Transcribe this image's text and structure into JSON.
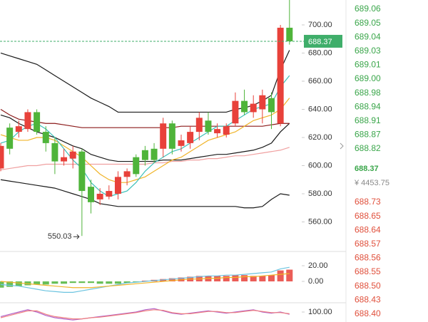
{
  "chart_data": [
    {
      "type": "candlestick",
      "ylim": [
        539,
        717.7
      ],
      "yticks": [
        {
          "value": 700,
          "label": "700.00"
        },
        {
          "value": 680,
          "label": "680.00"
        },
        {
          "value": 660,
          "label": "660.00"
        },
        {
          "value": 640,
          "label": "640.00"
        },
        {
          "value": 620,
          "label": "620.00"
        },
        {
          "value": 600,
          "label": "600.00"
        },
        {
          "value": 580,
          "label": "580.00"
        },
        {
          "value": 560,
          "label": "560.00"
        }
      ],
      "up_color": "#e8413a",
      "down_color": "#4fb43a",
      "last_price": 688.37,
      "last_color": "#3fae6a",
      "open": [
        598,
        627,
        624,
        626,
        638,
        624,
        616,
        603,
        605,
        610,
        585,
        576,
        578,
        580,
        592,
        606,
        611,
        612,
        612,
        630,
        614,
        616,
        624,
        632,
        623,
        622,
        630,
        646,
        638,
        640,
        648,
        630,
        698
      ],
      "high": [
        616,
        630,
        632,
        640,
        640,
        628,
        620,
        612,
        614,
        612,
        590,
        584,
        586,
        596,
        598,
        608,
        614,
        616,
        634,
        632,
        622,
        628,
        638,
        638,
        630,
        630,
        652,
        654,
        650,
        654,
        652,
        700,
        720
      ],
      "low": [
        596,
        608,
        620,
        624,
        622,
        610,
        594,
        600,
        598,
        550.03,
        566,
        572,
        576,
        576,
        586,
        592,
        600,
        602,
        606,
        608,
        610,
        612,
        618,
        622,
        620,
        620,
        628,
        636,
        634,
        630,
        626,
        628,
        686
      ],
      "close": [
        614,
        612,
        628,
        638,
        624,
        616,
        603,
        606,
        610,
        582,
        574,
        580,
        582,
        592,
        596,
        594,
        604,
        604,
        630,
        612,
        618,
        624,
        634,
        624,
        626,
        628,
        646,
        638,
        644,
        650,
        638,
        698,
        688.37
      ],
      "low_label_index": 9,
      "lines": [
        {
          "color": "#1a1a1a",
          "values": [
            680,
            678,
            676,
            674,
            672,
            668,
            664,
            660,
            656,
            652,
            648,
            645,
            642,
            638,
            638,
            638,
            638,
            638,
            638,
            638,
            638,
            638,
            638,
            638,
            638,
            638,
            640,
            641,
            643,
            646,
            650,
            668,
            682
          ]
        },
        {
          "color": "#1a1a1a",
          "values": [
            590,
            589,
            588,
            587,
            586,
            585,
            584,
            582,
            580,
            578,
            576,
            573,
            572,
            571,
            571,
            571,
            571,
            571,
            571,
            571,
            571,
            571,
            571,
            571,
            571,
            571,
            571,
            570,
            570,
            571,
            576,
            580,
            579
          ]
        },
        {
          "color": "#1a1a1a",
          "values": [
            636,
            634,
            630,
            627,
            624,
            622,
            620,
            617,
            614,
            612,
            608,
            606,
            604,
            603,
            603,
            603,
            603,
            603,
            604,
            604,
            604,
            605,
            606,
            607,
            608,
            608,
            609,
            610,
            611,
            613,
            616,
            624,
            630
          ]
        },
        {
          "color": "#8b1a1a",
          "values": [
            640,
            636,
            633,
            632,
            631,
            630,
            630,
            629,
            628,
            627,
            627,
            627,
            627,
            627,
            627,
            627,
            627,
            627,
            627,
            627,
            628,
            628,
            628,
            628,
            628,
            628,
            628,
            628,
            628,
            628,
            629,
            630,
            630
          ]
        },
        {
          "color": "#f0a0a0",
          "values": [
            597,
            598,
            599,
            600,
            600,
            601,
            601,
            601,
            601,
            601,
            601,
            601,
            601,
            601,
            601,
            601,
            601,
            602,
            602,
            603,
            603,
            604,
            604,
            605,
            605,
            606,
            607,
            607,
            608,
            609,
            610,
            611,
            613
          ]
        },
        {
          "color": "#f0b429",
          "values": [
            622,
            620,
            618,
            618,
            620,
            620,
            618,
            614,
            610,
            606,
            600,
            594,
            590,
            588,
            588,
            590,
            592,
            596,
            600,
            604,
            606,
            610,
            614,
            618,
            620,
            622,
            624,
            628,
            632,
            634,
            636,
            640,
            648
          ]
        },
        {
          "color": "#3cc0b8",
          "values": [
            616,
            618,
            624,
            628,
            630,
            626,
            620,
            612,
            604,
            598,
            588,
            582,
            578,
            580,
            582,
            588,
            596,
            602,
            606,
            610,
            612,
            616,
            620,
            624,
            628,
            628,
            632,
            636,
            640,
            642,
            644,
            656,
            664
          ]
        }
      ]
    },
    {
      "type": "bar",
      "ylim": [
        -27.3,
        38.2
      ],
      "yticks": [
        {
          "value": 20,
          "label": "20.00"
        },
        {
          "value": 0,
          "label": "0.00"
        }
      ],
      "up_color": "#e8413a",
      "down_color": "#4fb43a",
      "values": [
        -8,
        -7,
        -6,
        -5,
        -4,
        -4,
        -3,
        -3,
        -2,
        -2,
        -2,
        -3,
        -3,
        -3,
        -2,
        -1,
        1,
        2,
        3,
        4,
        5,
        6,
        7,
        7,
        7,
        7,
        8,
        8,
        7,
        7,
        8,
        14,
        15
      ],
      "lines": [
        {
          "color": "#6cc4e0",
          "values": [
            -4,
            -5,
            -6,
            -8,
            -10,
            -12,
            -13,
            -14,
            -14,
            -12,
            -10,
            -8,
            -6,
            -4,
            -2,
            -1,
            0,
            1,
            2,
            3,
            4,
            5,
            6,
            7,
            7,
            8,
            8,
            9,
            10,
            11,
            12,
            16,
            18
          ]
        },
        {
          "color": "#f0b429",
          "values": [
            0,
            -1,
            -2,
            -3,
            -4,
            -5,
            -6,
            -7,
            -8,
            -8,
            -8,
            -7,
            -6,
            -5,
            -4,
            -3,
            -2,
            -1,
            0,
            1,
            2,
            3,
            3,
            4,
            4,
            5,
            5,
            6,
            6,
            7,
            8,
            9,
            10
          ]
        }
      ]
    },
    {
      "type": "line",
      "ylim": [
        82.5,
        116.25
      ],
      "yticks": [
        {
          "value": 100,
          "label": "100.00"
        }
      ],
      "lines": [
        {
          "color": "#b060c8",
          "values": [
            92,
            96,
            100,
            104,
            100,
            94,
            90,
            88,
            86,
            88,
            90,
            92,
            94,
            96,
            98,
            100,
            104,
            106,
            102,
            98,
            96,
            98,
            100,
            102,
            100,
            98,
            100,
            102,
            104,
            100,
            98,
            100,
            96
          ]
        },
        {
          "color": "#f08080",
          "values": [
            90,
            94,
            98,
            102,
            102,
            96,
            92,
            90,
            88,
            88,
            90,
            91,
            93,
            95,
            97,
            99,
            102,
            104,
            103,
            99,
            97,
            97,
            99,
            101,
            101,
            99,
            99,
            101,
            103,
            101,
            99,
            99,
            97
          ]
        }
      ]
    }
  ],
  "order_book": {
    "asks": [
      "689.06",
      "689.05",
      "689.04",
      "689.03",
      "689.01",
      "689.00",
      "688.98",
      "688.94",
      "688.91",
      "688.87",
      "688.82"
    ],
    "last": "688.37",
    "cny": "¥ 4453.75",
    "bids": [
      "688.73",
      "688.65",
      "688.64",
      "688.57",
      "688.56",
      "688.55",
      "688.50",
      "688.43",
      "688.40"
    ]
  }
}
